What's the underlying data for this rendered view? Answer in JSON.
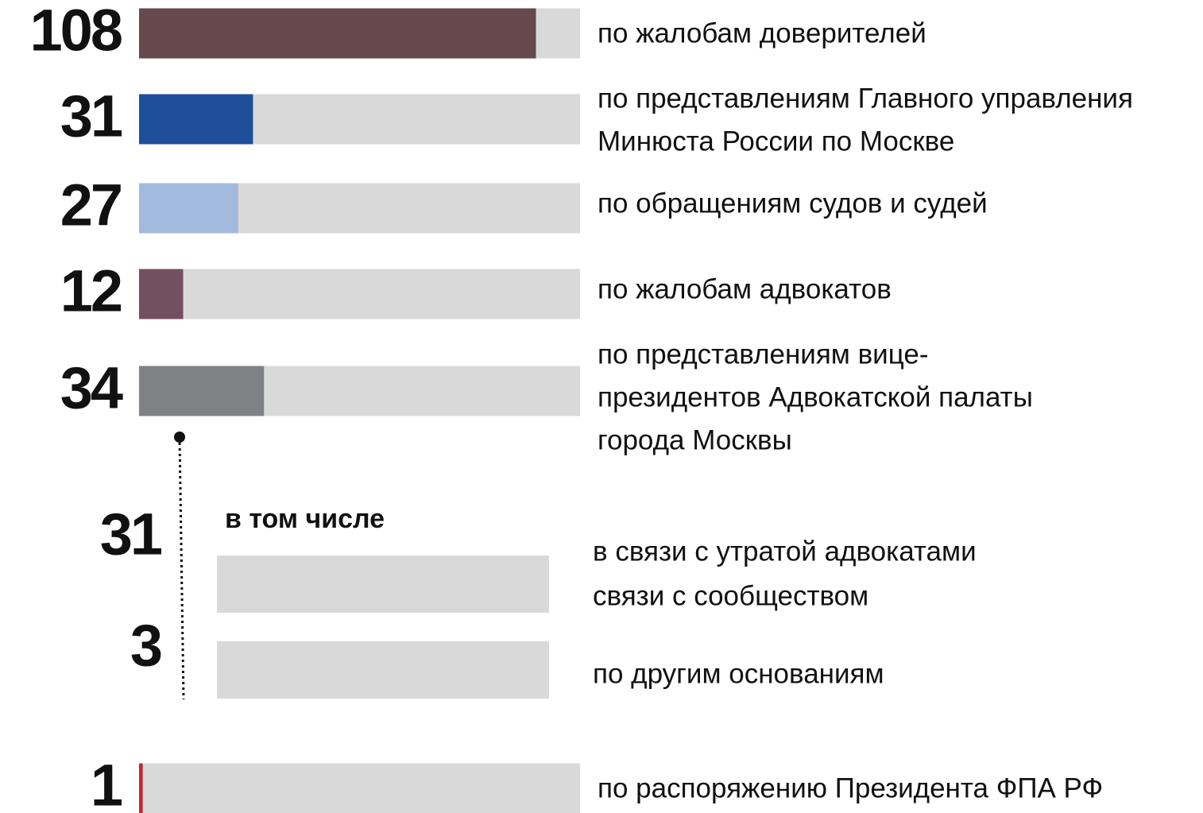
{
  "chart_data": {
    "type": "bar",
    "orientation": "horizontal",
    "xlim": [
      0,
      120
    ],
    "background_color": "#d9d9d9",
    "categories": [
      [
        "по жалобам доверителей"
      ],
      [
        "по представлениям Главного управления",
        "Минюста России по Москве"
      ],
      [
        "по обращениям судов и судей"
      ],
      [
        "по жалобам адвокатов"
      ],
      [
        "по представлениям вице-",
        "президентов Адвокатской палаты",
        "города Москвы"
      ],
      [
        "по распоряжению Президента ФПА РФ"
      ]
    ],
    "values": [
      108,
      31,
      27,
      12,
      34,
      1
    ],
    "colors": [
      "#65494c",
      "#1f4e9b",
      "#a3badf",
      "#73505f",
      "#808184",
      "#c1272d"
    ],
    "sub": {
      "title": "в том числе",
      "categories": [
        [
          "в связи с утратой адвокатами",
          "связи с сообществом"
        ],
        [
          "по другим основаниям"
        ]
      ],
      "values": [
        31,
        3
      ],
      "color": "#d9d9d9"
    }
  }
}
